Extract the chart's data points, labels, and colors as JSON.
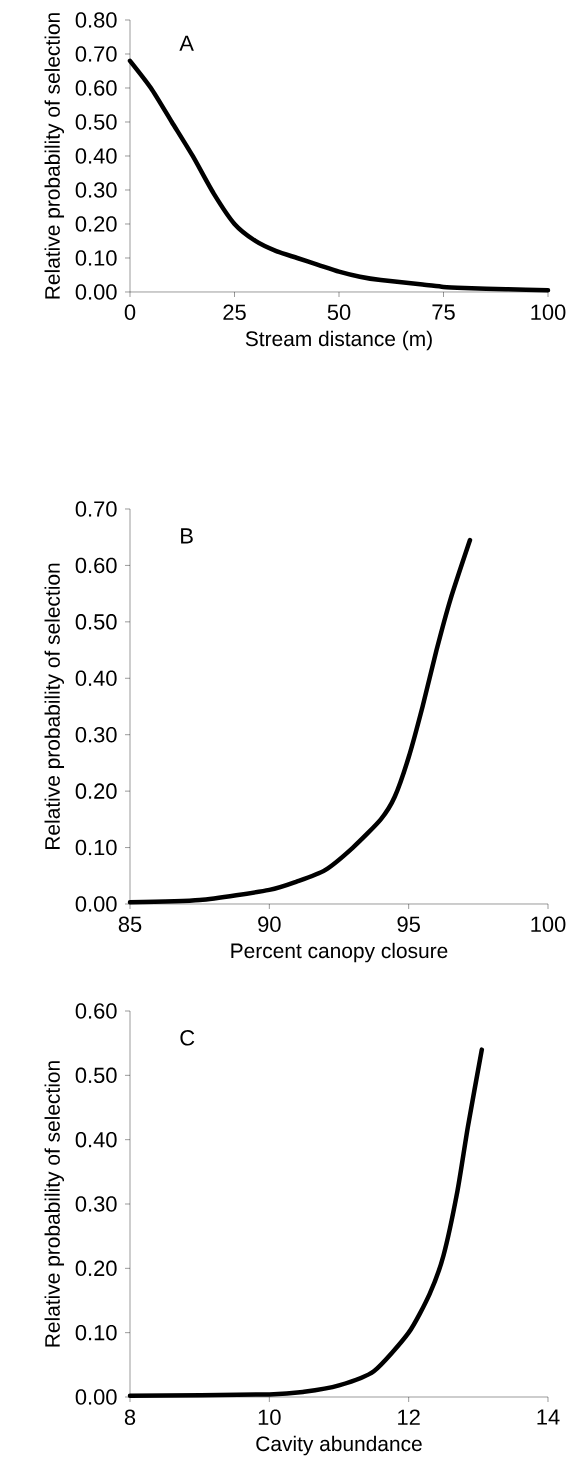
{
  "chart_data": [
    {
      "type": "line",
      "xlabel": "Stream distance (m)",
      "ylabel": "Relative probability of selection",
      "annotations": [
        "A"
      ],
      "x": [
        0,
        5,
        10,
        15,
        20,
        25,
        30,
        35,
        40,
        45,
        50,
        55,
        60,
        70,
        75,
        80,
        90,
        100
      ],
      "series": [
        {
          "color": "#000000",
          "values": [
            0.68,
            0.6,
            0.5,
            0.4,
            0.29,
            0.2,
            0.15,
            0.12,
            0.1,
            0.08,
            0.06,
            0.045,
            0.035,
            0.022,
            0.015,
            0.012,
            0.008,
            0.005
          ]
        }
      ],
      "xlim": [
        0,
        100
      ],
      "xticks": [
        0,
        25,
        50,
        75,
        100
      ],
      "ylim": [
        0,
        0.8
      ],
      "yticks": [
        {
          "value": 0,
          "label": "0.00"
        },
        {
          "value": 0.1,
          "label": "0.10"
        },
        {
          "value": 0.2,
          "label": "0.20"
        },
        {
          "value": 0.3,
          "label": "0.30"
        },
        {
          "value": 0.4,
          "label": "0.40"
        },
        {
          "value": 0.5,
          "label": "0.50"
        },
        {
          "value": 0.6,
          "label": "0.60"
        },
        {
          "value": 0.7,
          "label": "0.70"
        },
        {
          "value": 0.8,
          "label": "0.80"
        }
      ]
    },
    {
      "type": "line",
      "xlabel": "Percent canopy closure",
      "ylabel": "Relative probability of selection",
      "annotations": [
        "B"
      ],
      "x": [
        85,
        87.5,
        90,
        91,
        92,
        93,
        94,
        94.5,
        95,
        95.5,
        96,
        96.5,
        97.2
      ],
      "series": [
        {
          "color": "#000000",
          "values": [
            0.003,
            0.007,
            0.025,
            0.04,
            0.06,
            0.1,
            0.15,
            0.19,
            0.26,
            0.35,
            0.45,
            0.54,
            0.645
          ]
        }
      ],
      "xlim": [
        85,
        100
      ],
      "xticks": [
        85,
        90,
        95,
        100
      ],
      "ylim": [
        0,
        0.7
      ],
      "yticks": [
        {
          "value": 0,
          "label": "0.00"
        },
        {
          "value": 0.1,
          "label": "0.10"
        },
        {
          "value": 0.2,
          "label": "0.20"
        },
        {
          "value": 0.3,
          "label": "0.30"
        },
        {
          "value": 0.4,
          "label": "0.40"
        },
        {
          "value": 0.5,
          "label": "0.50"
        },
        {
          "value": 0.6,
          "label": "0.60"
        },
        {
          "value": 0.7,
          "label": "0.70"
        }
      ]
    },
    {
      "type": "line",
      "xlabel": "Cavity abundance",
      "ylabel": "Relative probability of selection",
      "annotations": [
        "C"
      ],
      "x": [
        8,
        10,
        10.5,
        11,
        11.5,
        12,
        12.3,
        12.5,
        12.7,
        12.85,
        13.05
      ],
      "series": [
        {
          "color": "#000000",
          "values": [
            0.002,
            0.004,
            0.008,
            0.018,
            0.04,
            0.1,
            0.16,
            0.22,
            0.32,
            0.42,
            0.54
          ]
        }
      ],
      "xlim": [
        8,
        14
      ],
      "xticks": [
        8,
        10,
        12,
        14
      ],
      "ylim": [
        0,
        0.6
      ],
      "yticks": [
        {
          "value": 0,
          "label": "0.00"
        },
        {
          "value": 0.1,
          "label": "0.10"
        },
        {
          "value": 0.2,
          "label": "0.20"
        },
        {
          "value": 0.3,
          "label": "0.30"
        },
        {
          "value": 0.4,
          "label": "0.40"
        },
        {
          "value": 0.5,
          "label": "0.50"
        },
        {
          "value": 0.6,
          "label": "0.60"
        }
      ]
    }
  ]
}
